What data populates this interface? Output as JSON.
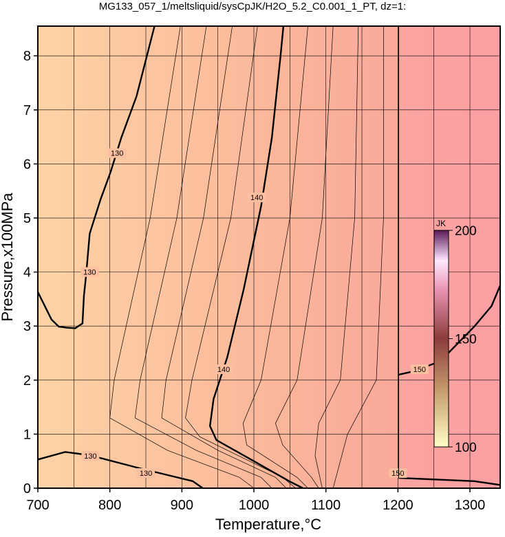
{
  "chart_data": {
    "type": "contour",
    "title": "MG133_057_1/meltsliquid/sysCpJK/H2O_5.2_C0.001_1_PT, dz=1:",
    "xlabel": "Temperature,°C",
    "ylabel": "Pressure,x100MPa",
    "xlim": [
      700,
      1342
    ],
    "ylim": [
      0,
      8.55
    ],
    "xticks": [
      700,
      800,
      900,
      1000,
      1100,
      1200,
      1300
    ],
    "yticks": [
      0,
      1,
      2,
      3,
      4,
      5,
      6,
      7,
      8
    ],
    "xgrid": [
      750,
      800,
      850,
      900,
      950,
      1000,
      1050,
      1100,
      1150,
      1200,
      1250,
      1300
    ],
    "grid": true,
    "colorbar": {
      "label": "JK",
      "clim": [
        100,
        200
      ],
      "ticks": [
        100,
        150,
        200
      ]
    },
    "contours": [
      {
        "level": 130,
        "lw": 2.4,
        "x": [
          700,
          719,
          729,
          740,
          752,
          762,
          764,
          767,
          772,
          787,
          801,
          816,
          837,
          862
        ],
        "y": [
          3.63,
          3.12,
          2.99,
          2.97,
          2.96,
          3.05,
          3.56,
          3.94,
          4.71,
          5.34,
          5.85,
          6.49,
          7.25,
          8.55
        ],
        "label_points": [
          [
            772,
            4.0
          ],
          [
            810,
            6.2
          ]
        ]
      },
      {
        "level": 130,
        "lw": 2.4,
        "x": [
          700,
          738,
          772,
          838,
          915,
          929
        ],
        "y": [
          0.53,
          0.67,
          0.61,
          0.38,
          0.13,
          0
        ],
        "label_points": [
          [
            773,
            0.6
          ],
          [
            850,
            0.28
          ]
        ]
      },
      {
        "level": 140,
        "lw": 2.4,
        "x": [
          1041,
          1037,
          1025,
          1010,
          986,
          963,
          944,
          939,
          948,
          1000,
          1049,
          1068
        ],
        "y": [
          8.55,
          8.0,
          6.49,
          5.22,
          3.69,
          2.42,
          1.65,
          1.15,
          0.89,
          0.5,
          0.13,
          0
        ],
        "label_points": [
          [
            1004,
            5.38
          ],
          [
            958,
            2.2
          ]
        ]
      },
      {
        "level": 150,
        "lw": 2.4,
        "x": [
          1201,
          1221,
          1259,
          1278,
          1306,
          1330,
          1342
        ],
        "y": [
          2.1,
          2.16,
          2.35,
          2.61,
          2.99,
          3.37,
          3.75
        ],
        "label_points": [
          [
            1230,
            2.2
          ]
        ]
      },
      {
        "level": 150,
        "lw": 2.4,
        "x": [
          1201,
          1306,
          1342
        ],
        "y": [
          0.19,
          0.13,
          0.06
        ],
        "label_points": [
          [
            1200,
            0.28
          ]
        ]
      },
      {
        "level": 150,
        "lw": 1.2,
        "x": [
          1201,
          1201
        ],
        "y": [
          0.19,
          8.55
        ],
        "label_points": []
      },
      {
        "level": 132,
        "lw": 0.7,
        "x": [
          898,
          856,
          806,
          800,
          880,
          980,
          1000
        ],
        "y": [
          8.55,
          5.0,
          2.0,
          1.3,
          0.7,
          0.2,
          0
        ],
        "label_points": []
      },
      {
        "level": 134,
        "lw": 0.7,
        "x": [
          934,
          893,
          842,
          835,
          920,
          1010,
          1025
        ],
        "y": [
          8.55,
          5.0,
          2.0,
          1.3,
          0.7,
          0.2,
          0
        ],
        "label_points": []
      },
      {
        "level": 136,
        "lw": 0.7,
        "x": [
          970,
          930,
          878,
          872,
          950,
          1030,
          1045
        ],
        "y": [
          8.55,
          5.0,
          2.0,
          1.3,
          0.7,
          0.2,
          0
        ],
        "label_points": []
      },
      {
        "level": 138,
        "lw": 0.7,
        "x": [
          1005,
          968,
          914,
          905,
          925,
          1040,
          1058
        ],
        "y": [
          8.55,
          5.0,
          2.0,
          1.3,
          0.95,
          0.2,
          0
        ],
        "label_points": []
      },
      {
        "level": 142,
        "lw": 0.7,
        "x": [
          1075,
          1050,
          1010,
          985,
          990,
          1060,
          1075
        ],
        "y": [
          8.55,
          5.0,
          2.0,
          1.2,
          0.8,
          0.2,
          0
        ],
        "label_points": []
      },
      {
        "level": 144,
        "lw": 0.7,
        "x": [
          1110,
          1095,
          1060,
          1030,
          1040,
          1080,
          1090
        ],
        "y": [
          8.55,
          5.0,
          2.0,
          1.2,
          0.8,
          0.2,
          0
        ],
        "label_points": []
      },
      {
        "level": 146,
        "lw": 0.7,
        "x": [
          1145,
          1140,
          1120,
          1090,
          1085,
          1095
        ],
        "y": [
          8.55,
          5.0,
          2.0,
          1.2,
          0.6,
          0
        ],
        "label_points": []
      },
      {
        "level": 148,
        "lw": 0.7,
        "x": [
          1180,
          1180,
          1170,
          1130,
          1110
        ],
        "y": [
          8.55,
          5.0,
          2.0,
          1.0,
          0
        ],
        "label_points": []
      }
    ]
  }
}
